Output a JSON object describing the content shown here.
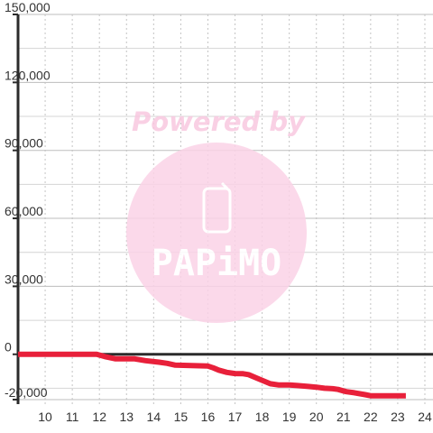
{
  "chart_data": {
    "type": "line",
    "title": "",
    "xlabel": "",
    "ylabel": "",
    "xlim": [
      9.0,
      24.3
    ],
    "ylim": [
      -22000,
      150000
    ],
    "x_ticks": [
      10,
      11,
      12,
      13,
      14,
      15,
      16,
      17,
      18,
      19,
      20,
      21,
      22,
      23,
      24
    ],
    "x_tick_labels": [
      "10",
      "11",
      "12",
      "13",
      "14",
      "15",
      "16",
      "17",
      "18",
      "19",
      "20",
      "21",
      "22",
      "23",
      "24"
    ],
    "y_ticks": [
      -20000,
      0,
      30000,
      60000,
      90000,
      120000,
      150000
    ],
    "y_tick_labels": [
      "-20,000",
      "0",
      "30,000",
      "60,000",
      "90,000",
      "120,000",
      "150,000"
    ],
    "grid": true,
    "series": [
      {
        "color": "#e8203a",
        "x": [
          9.0,
          10.0,
          11.0,
          11.9,
          12.2,
          12.6,
          13.0,
          13.3,
          13.7,
          14.2,
          14.5,
          14.8,
          15.4,
          16.0,
          16.2,
          16.4,
          16.7,
          17.0,
          17.3,
          17.5,
          17.8,
          18.0,
          18.3,
          18.6,
          19.0,
          19.3,
          19.7,
          20.0,
          20.3,
          20.6,
          20.8,
          21.1,
          21.4,
          21.8,
          22.0,
          22.5,
          23.0,
          23.3
        ],
        "y": [
          0,
          0,
          0,
          0,
          -1000,
          -2000,
          -2000,
          -2000,
          -2800,
          -3500,
          -4000,
          -4800,
          -5000,
          -5200,
          -6000,
          -7000,
          -8000,
          -8500,
          -8600,
          -9000,
          -10500,
          -11500,
          -13000,
          -13500,
          -13500,
          -13800,
          -14200,
          -14500,
          -15000,
          -15200,
          -15500,
          -16500,
          -17000,
          -17800,
          -18300,
          -18300,
          -18300,
          -18300
        ]
      }
    ]
  },
  "watermark": {
    "powered_by": "Powered by",
    "brand": "PAPiMO",
    "color": "#f9c8e0"
  }
}
